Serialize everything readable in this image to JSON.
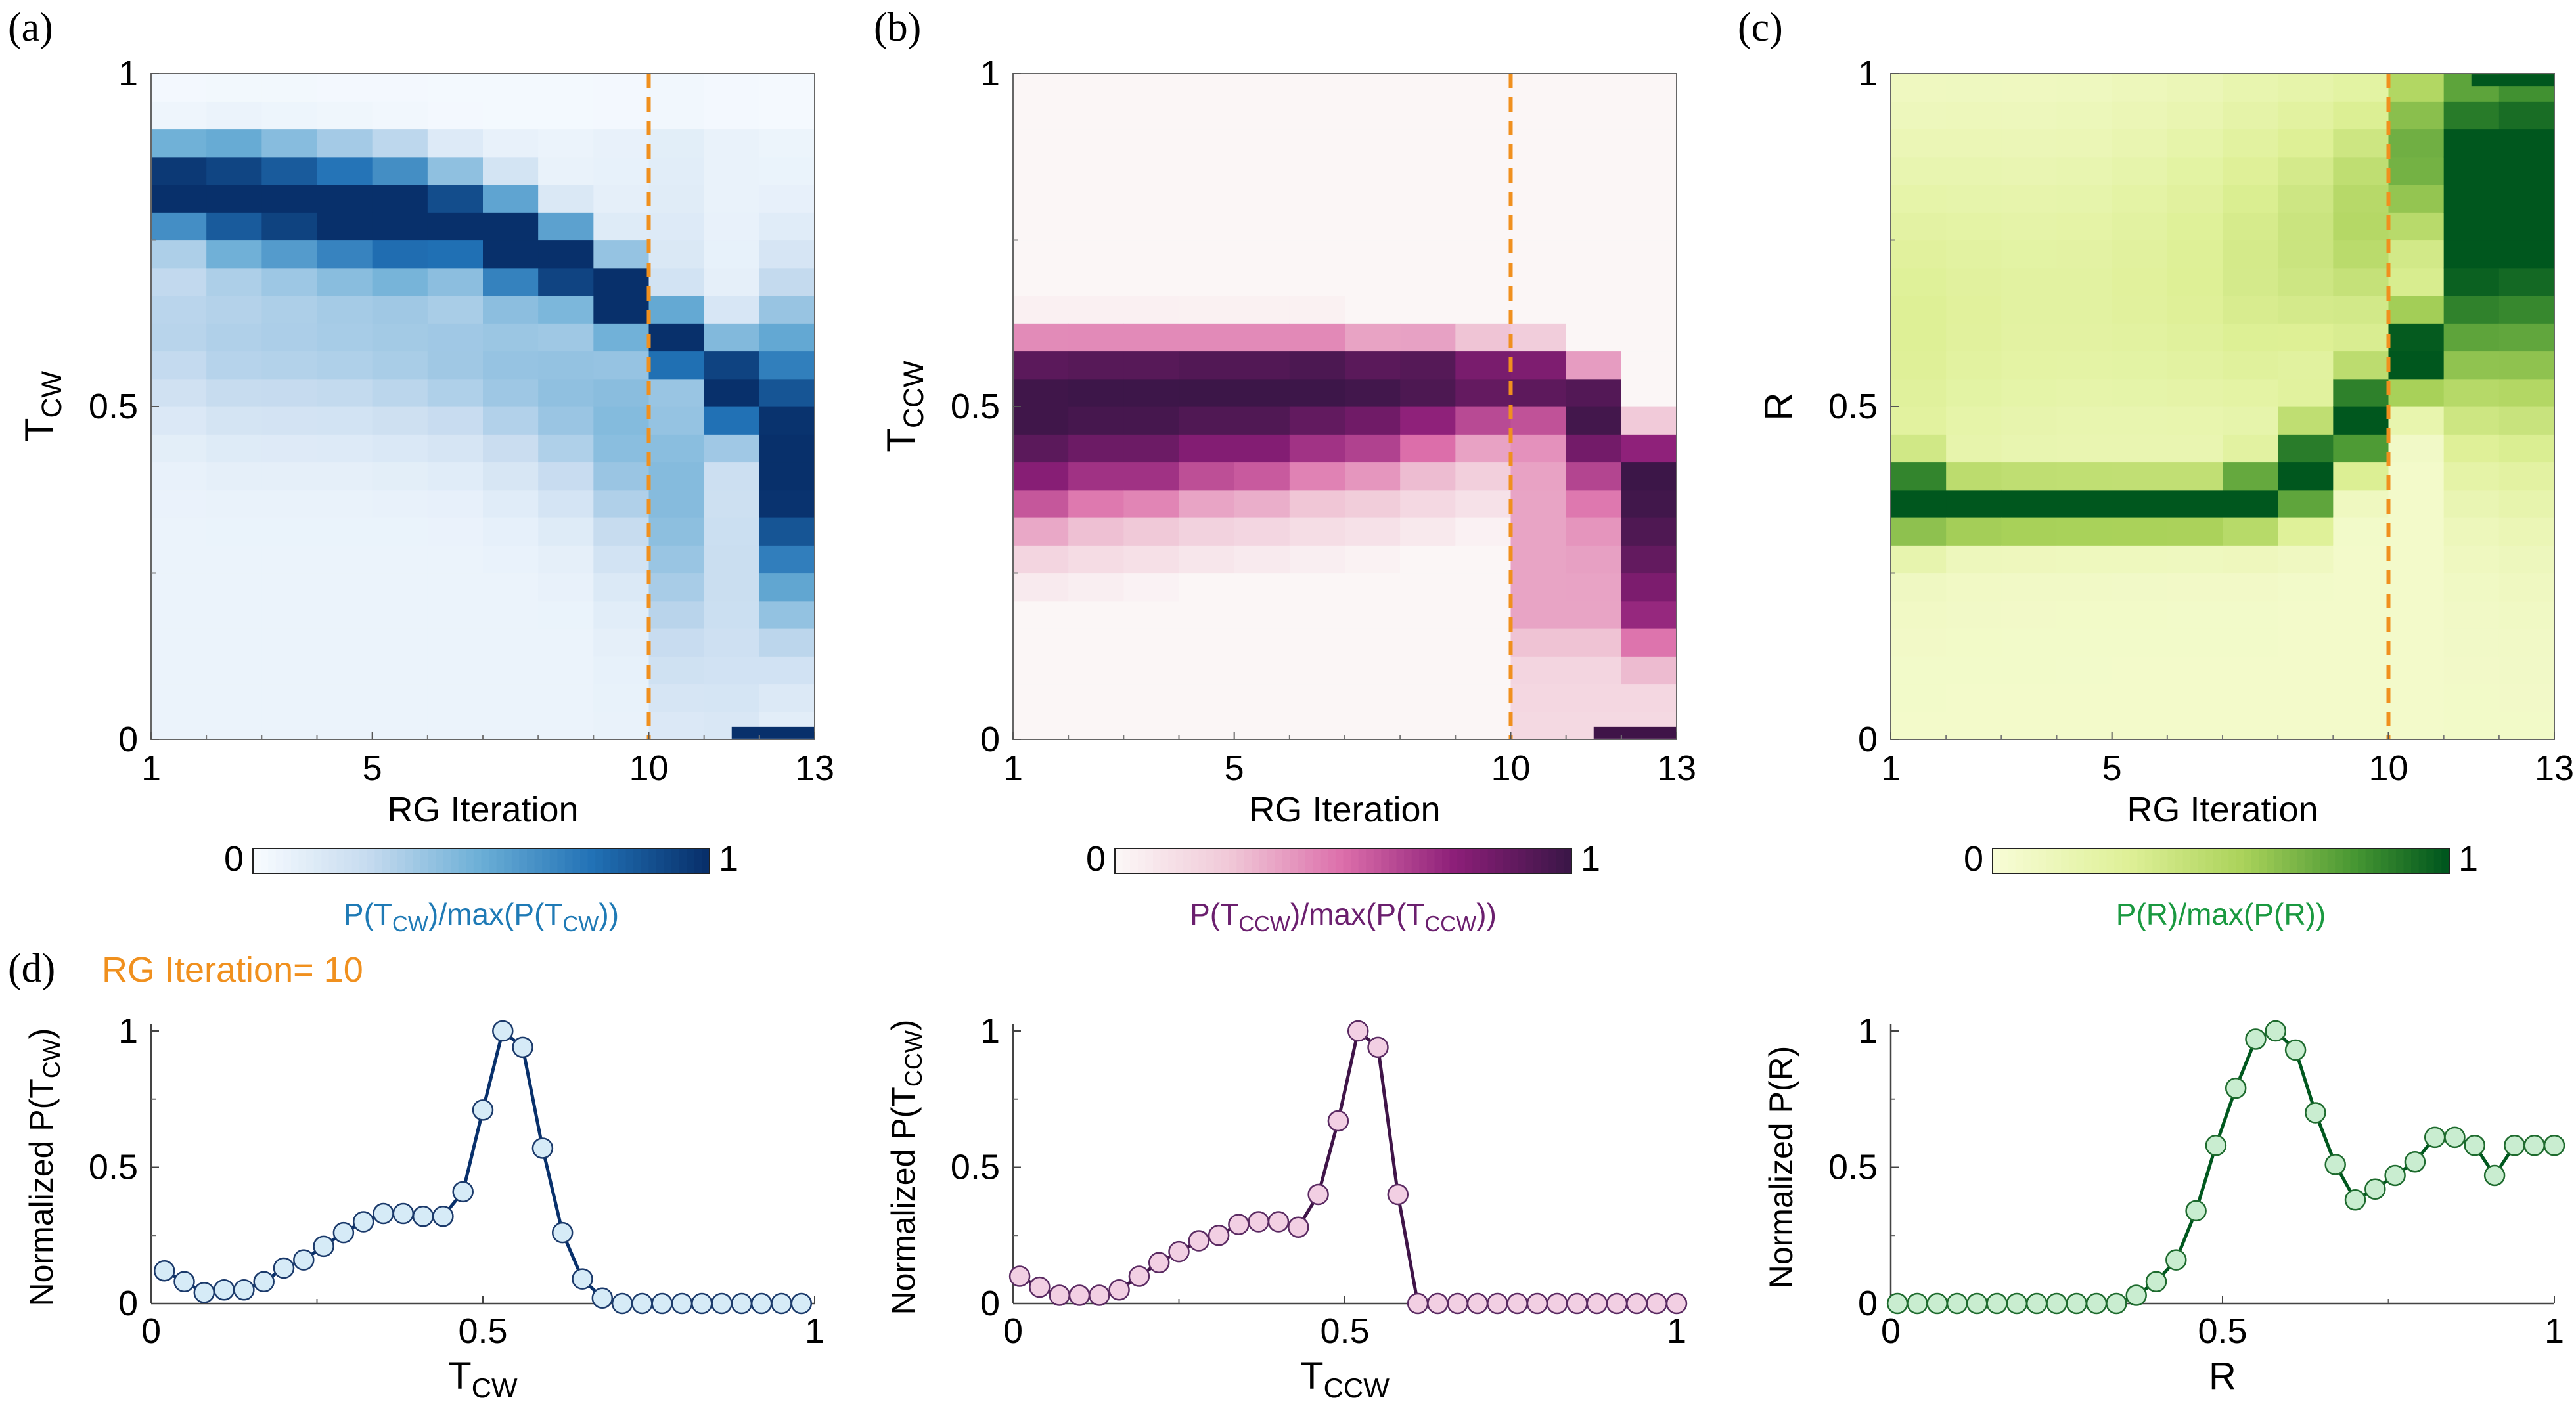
{
  "figure": {
    "panel_letters": [
      "(a)",
      "(b)",
      "(c)",
      "(d)"
    ],
    "highlight_label": "RG Iteration= 10",
    "colors": {
      "blue_dark": "#08306b",
      "blue_label": "#1f7ab5",
      "purple_dark": "#3f1448",
      "purple_label": "#6b1f6e",
      "green_dark": "#00571e",
      "green_label": "#1a9940",
      "orange": "#f0901e"
    }
  },
  "chart_data": [
    {
      "type": "heatmap",
      "id": "a",
      "xlabel": "RG Iteration",
      "ylabel_base": "T",
      "ylabel_sub": "CW",
      "x_range": [
        1,
        13
      ],
      "y_range": [
        0,
        1
      ],
      "x_ticks": [
        "1",
        "5",
        "10",
        "13"
      ],
      "y_ticks": [
        "0",
        "0.5",
        "1"
      ],
      "marker_iteration": 10,
      "colorbar": {
        "min_label": "0",
        "max_label": "1",
        "label": "P(T_CW)/max(P(T_CW))"
      },
      "colorbar_label_parts": [
        "P(T",
        "CW",
        ")/max(P(T",
        "CW",
        "))"
      ],
      "iteration_profiles": [
        {
          "peak": 0.83,
          "width": 0.05,
          "tail": 0.23,
          "tail_center": 0.62,
          "tail_width": 0.1,
          "bottom": 0.06
        },
        {
          "peak": 0.82,
          "width": 0.06,
          "tail": 0.25,
          "tail_center": 0.6,
          "tail_width": 0.1,
          "bottom": 0.06
        },
        {
          "peak": 0.81,
          "width": 0.06,
          "tail": 0.26,
          "tail_center": 0.6,
          "tail_width": 0.1,
          "bottom": 0.06
        },
        {
          "peak": 0.8,
          "width": 0.06,
          "tail": 0.27,
          "tail_center": 0.6,
          "tail_width": 0.1,
          "bottom": 0.06
        },
        {
          "peak": 0.79,
          "width": 0.06,
          "tail": 0.28,
          "tail_center": 0.59,
          "tail_width": 0.1,
          "bottom": 0.06
        },
        {
          "peak": 0.78,
          "width": 0.05,
          "tail": 0.3,
          "tail_center": 0.58,
          "tail_width": 0.1,
          "bottom": 0.06
        },
        {
          "peak": 0.75,
          "width": 0.05,
          "tail": 0.32,
          "tail_center": 0.56,
          "tail_width": 0.11,
          "bottom": 0.06
        },
        {
          "peak": 0.72,
          "width": 0.04,
          "tail": 0.34,
          "tail_center": 0.53,
          "tail_width": 0.12,
          "bottom": 0.06
        },
        {
          "peak": 0.67,
          "width": 0.035,
          "tail": 0.36,
          "tail_center": 0.48,
          "tail_width": 0.14,
          "bottom": 0.07
        },
        {
          "peak": 0.6,
          "width": 0.03,
          "tail": 0.33,
          "tail_center": 0.38,
          "tail_width": 0.18,
          "bottom": 0.1
        },
        {
          "peak": 0.53,
          "width": 0.05,
          "tail": 0.16,
          "tail_center": 0.25,
          "tail_width": 0.2,
          "bottom": 0.07
        },
        {
          "peak": 0.42,
          "width": 0.15,
          "tail": 0.04,
          "tail_center": 0.2,
          "tail_width": 0.2,
          "bottom": 0.05
        }
      ],
      "last_bin": {
        "value_y": 0.01,
        "x_start": 11.5,
        "x_end": 13
      }
    },
    {
      "type": "heatmap",
      "id": "b",
      "xlabel": "RG Iteration",
      "ylabel_base": "T",
      "ylabel_sub": "CCW",
      "x_range": [
        1,
        13
      ],
      "y_range": [
        0,
        1
      ],
      "x_ticks": [
        "1",
        "5",
        "10",
        "13"
      ],
      "y_ticks": [
        "0",
        "0.5",
        "1"
      ],
      "marker_iteration": 10,
      "colorbar": {
        "min_label": "0",
        "max_label": "1",
        "label": "P(T_CCW)/max(P(T_CCW))"
      },
      "colorbar_label_parts": [
        "P(T",
        "CCW",
        ")/max(P(T",
        "CCW",
        "))"
      ],
      "iteration_profiles": [
        {
          "center": 0.5,
          "width": 0.11,
          "low": 0.2,
          "high": 0.65
        },
        {
          "center": 0.51,
          "width": 0.1,
          "low": 0.21,
          "high": 0.65
        },
        {
          "center": 0.51,
          "width": 0.1,
          "low": 0.22,
          "high": 0.65
        },
        {
          "center": 0.52,
          "width": 0.09,
          "low": 0.23,
          "high": 0.65
        },
        {
          "center": 0.52,
          "width": 0.09,
          "low": 0.24,
          "high": 0.65
        },
        {
          "center": 0.53,
          "width": 0.08,
          "low": 0.25,
          "high": 0.65
        },
        {
          "center": 0.54,
          "width": 0.08,
          "low": 0.26,
          "high": 0.64
        },
        {
          "center": 0.55,
          "width": 0.07,
          "low": 0.28,
          "high": 0.64
        },
        {
          "center": 0.56,
          "width": 0.06,
          "low": 0.3,
          "high": 0.63
        },
        {
          "center": 0.55,
          "width": 0.05,
          "low": 0.02,
          "high": 0.63
        },
        {
          "center": 0.5,
          "width": 0.08,
          "low": 0.02,
          "high": 0.6
        },
        {
          "center": 0.4,
          "width": 0.2,
          "low": 0.02,
          "high": 0.5
        }
      ],
      "last_bin": {
        "value_y": 0.01,
        "x_start": 11.5,
        "x_end": 13
      }
    },
    {
      "type": "heatmap",
      "id": "c",
      "xlabel": "RG Iteration",
      "ylabel_base": "R",
      "ylabel_sub": "",
      "x_range": [
        1,
        13
      ],
      "y_range": [
        0,
        1
      ],
      "x_ticks": [
        "1",
        "5",
        "10",
        "13"
      ],
      "y_ticks": [
        "0",
        "0.5",
        "1"
      ],
      "marker_iteration": 10,
      "colorbar": {
        "min_label": "0",
        "max_label": "1",
        "label": "P(R)/max(P(R))"
      },
      "colorbar_label_parts": [
        "P(R)/max(P(R))"
      ],
      "iteration_profiles": [
        {
          "peak": 0.36,
          "width": 0.04,
          "tail": 0.25,
          "tail_center": 0.62,
          "tail_width": 0.2,
          "bottom": 0.05
        },
        {
          "peak": 0.35,
          "width": 0.03,
          "tail": 0.22,
          "tail_center": 0.64,
          "tail_width": 0.2,
          "bottom": 0.05
        },
        {
          "peak": 0.35,
          "width": 0.03,
          "tail": 0.2,
          "tail_center": 0.65,
          "tail_width": 0.2,
          "bottom": 0.05
        },
        {
          "peak": 0.35,
          "width": 0.03,
          "tail": 0.2,
          "tail_center": 0.66,
          "tail_width": 0.2,
          "bottom": 0.05
        },
        {
          "peak": 0.35,
          "width": 0.03,
          "tail": 0.22,
          "tail_center": 0.68,
          "tail_width": 0.2,
          "bottom": 0.05
        },
        {
          "peak": 0.35,
          "width": 0.03,
          "tail": 0.25,
          "tail_center": 0.7,
          "tail_width": 0.2,
          "bottom": 0.05
        },
        {
          "peak": 0.36,
          "width": 0.035,
          "tail": 0.3,
          "tail_center": 0.72,
          "tail_width": 0.2,
          "bottom": 0.05
        },
        {
          "peak": 0.4,
          "width": 0.05,
          "tail": 0.35,
          "tail_center": 0.75,
          "tail_width": 0.18,
          "bottom": 0.05
        },
        {
          "peak": 0.48,
          "width": 0.05,
          "tail": 0.45,
          "tail_center": 0.78,
          "tail_width": 0.15,
          "bottom": 0.05
        },
        {
          "peak": 0.58,
          "width": 0.05,
          "tail": 0.65,
          "tail_center": 0.88,
          "tail_width": 0.12,
          "bottom": 0.05
        },
        {
          "peak": 0.78,
          "width": 0.2,
          "tail": 0.1,
          "tail_center": 0.9,
          "tail_width": 0.1,
          "bottom": 0.06
        },
        {
          "peak": 0.8,
          "width": 0.22,
          "tail": 0.05,
          "tail_center": 0.9,
          "tail_width": 0.1,
          "bottom": 0.06
        }
      ],
      "last_bin": {
        "value_y": 0.99,
        "x_start": 11.5,
        "x_end": 13
      }
    },
    {
      "type": "line",
      "id": "d1",
      "xlabel_base": "T",
      "xlabel_sub": "CW",
      "ylabel_base": "Normalized P(T",
      "ylabel_sub": "CW",
      "ylabel_tail": ")",
      "x_range": [
        0,
        1
      ],
      "y_range": [
        0,
        1
      ],
      "x_ticks": [
        "0",
        "0.5",
        "1"
      ],
      "y_ticks": [
        "0",
        "0.5",
        "1"
      ],
      "x": [
        0.02,
        0.05,
        0.08,
        0.11,
        0.14,
        0.17,
        0.2,
        0.23,
        0.26,
        0.29,
        0.32,
        0.35,
        0.38,
        0.41,
        0.44,
        0.47,
        0.5,
        0.53,
        0.56,
        0.59,
        0.62,
        0.65,
        0.68,
        0.71,
        0.74,
        0.77,
        0.8,
        0.83,
        0.86,
        0.89,
        0.92,
        0.95,
        0.98
      ],
      "y": [
        0.12,
        0.08,
        0.04,
        0.05,
        0.05,
        0.08,
        0.13,
        0.16,
        0.21,
        0.26,
        0.3,
        0.33,
        0.33,
        0.32,
        0.32,
        0.41,
        0.71,
        1.0,
        0.94,
        0.57,
        0.26,
        0.09,
        0.02,
        0.0,
        0.0,
        0.0,
        0.0,
        0.0,
        0.0,
        0.0,
        0.0,
        0.0,
        0.0
      ]
    },
    {
      "type": "line",
      "id": "d2",
      "xlabel_base": "T",
      "xlabel_sub": "CCW",
      "ylabel_base": "Normalized P(T",
      "ylabel_sub": "CCW",
      "ylabel_tail": ")",
      "x_range": [
        0,
        1
      ],
      "y_range": [
        0,
        1
      ],
      "x_ticks": [
        "0",
        "0.5",
        "1"
      ],
      "y_ticks": [
        "0",
        "0.5",
        "1"
      ],
      "x": [
        0.01,
        0.04,
        0.07,
        0.1,
        0.13,
        0.16,
        0.19,
        0.22,
        0.25,
        0.28,
        0.31,
        0.34,
        0.37,
        0.4,
        0.43,
        0.46,
        0.49,
        0.52,
        0.55,
        0.58,
        0.61,
        0.64,
        0.67,
        0.7,
        0.73,
        0.76,
        0.79,
        0.82,
        0.85,
        0.88,
        0.91,
        0.94,
        0.97,
        1.0
      ],
      "y": [
        0.1,
        0.06,
        0.03,
        0.03,
        0.03,
        0.05,
        0.1,
        0.15,
        0.19,
        0.23,
        0.25,
        0.29,
        0.3,
        0.3,
        0.28,
        0.4,
        0.67,
        1.0,
        0.94,
        0.4,
        0.0,
        0.0,
        0.0,
        0.0,
        0.0,
        0.0,
        0.0,
        0.0,
        0.0,
        0.0,
        0.0,
        0.0,
        0.0,
        0.0
      ]
    },
    {
      "type": "line",
      "id": "d3",
      "xlabel_base": "R",
      "xlabel_sub": "",
      "ylabel_base": "Normalized P(R)",
      "ylabel_sub": "",
      "ylabel_tail": "",
      "x_range": [
        0,
        1
      ],
      "y_range": [
        0,
        1
      ],
      "x_ticks": [
        "0",
        "0.5",
        "1"
      ],
      "y_ticks": [
        "0",
        "0.5",
        "1"
      ],
      "x": [
        0.01,
        0.04,
        0.07,
        0.1,
        0.13,
        0.16,
        0.19,
        0.22,
        0.25,
        0.28,
        0.31,
        0.34,
        0.37,
        0.4,
        0.43,
        0.46,
        0.49,
        0.52,
        0.55,
        0.58,
        0.61,
        0.64,
        0.67,
        0.7,
        0.73,
        0.76,
        0.79,
        0.82,
        0.85,
        0.88,
        0.91,
        0.94,
        0.97,
        1.0
      ],
      "y": [
        0.0,
        0.0,
        0.0,
        0.0,
        0.0,
        0.0,
        0.0,
        0.0,
        0.0,
        0.0,
        0.0,
        0.0,
        0.03,
        0.08,
        0.16,
        0.34,
        0.58,
        0.79,
        0.97,
        1.0,
        0.93,
        0.7,
        0.51,
        0.38,
        0.42,
        0.47,
        0.52,
        0.61,
        0.61,
        0.58,
        0.47,
        0.58,
        0.58,
        0.58
      ]
    }
  ]
}
